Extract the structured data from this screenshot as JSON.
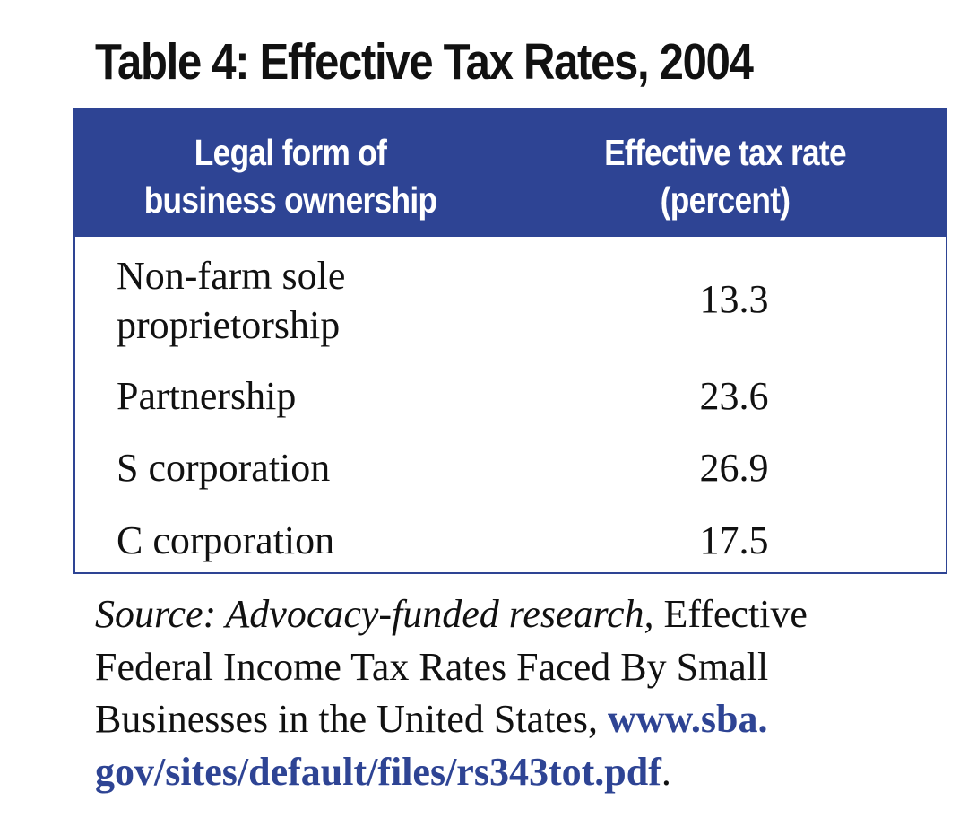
{
  "title": "Table 4: Effective Tax Rates, 2004",
  "table": {
    "headers": [
      {
        "lines": [
          "Legal form of",
          "business ownership"
        ]
      },
      {
        "lines": [
          "Effective tax rate",
          "(percent)"
        ]
      }
    ],
    "rows": [
      {
        "name_lines": [
          "Non-farm sole",
          "proprietorship"
        ],
        "value": "13.3"
      },
      {
        "name_lines": [
          "Partnership"
        ],
        "value": "23.6"
      },
      {
        "name_lines": [
          "S corporation"
        ],
        "value": "26.9"
      },
      {
        "name_lines": [
          "C corporation"
        ],
        "value": "17.5"
      }
    ]
  },
  "source": {
    "label_italic": "Source: Advocacy-funded research,",
    "text_1": "Effective",
    "text_2": "Federal Income Tax Rates Faced By Small",
    "text_3": "Businesses in the United States,",
    "link_part_1": "www.sba.",
    "link_part_2": "gov/sites/default/files/rs343tot.pdf",
    "trailing": "."
  },
  "colors": {
    "header_bg": "#2e4494",
    "link": "#2e4494"
  }
}
